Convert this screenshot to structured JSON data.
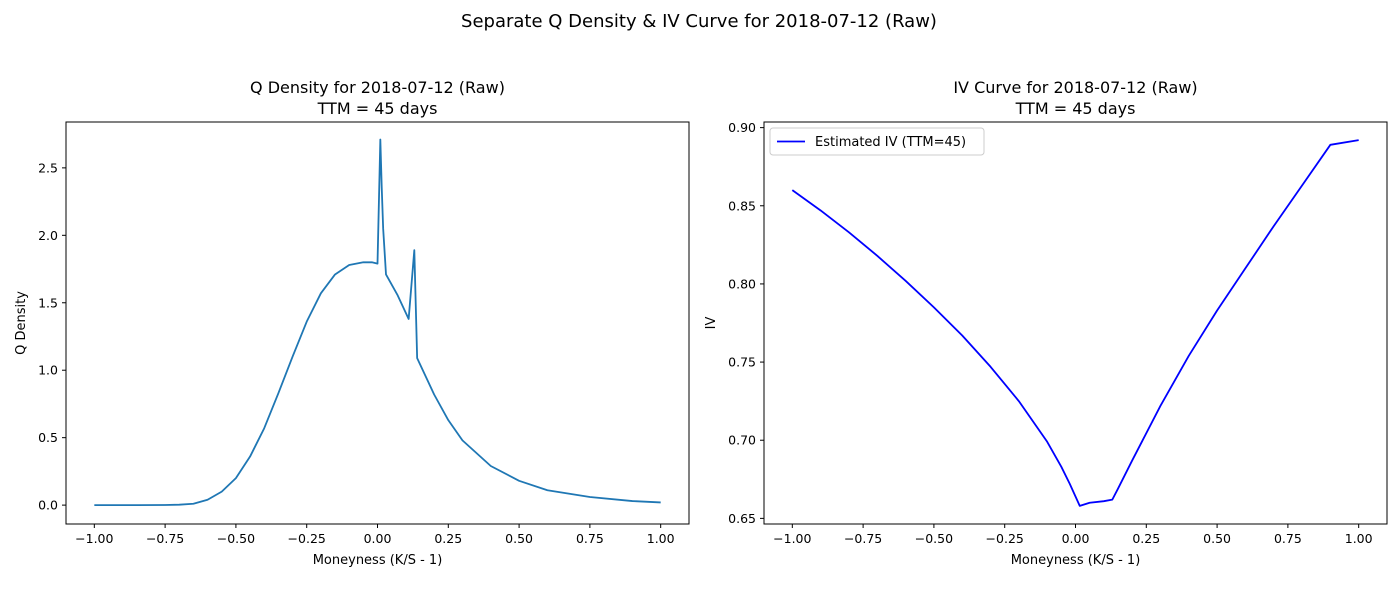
{
  "figure": {
    "suptitle": "Separate Q Density & IV Curve for 2018-07-12 (Raw)"
  },
  "chart_data": [
    {
      "type": "line",
      "title": "Q Density for 2018-07-12 (Raw)",
      "subtitle": "TTM = 45 days",
      "xlabel": "Moneyness (K/S - 1)",
      "ylabel": "Q Density",
      "xlim": [
        -1.1,
        1.1
      ],
      "ylim": [
        -0.14,
        2.84
      ],
      "xticks": [
        -1.0,
        -0.75,
        -0.5,
        -0.25,
        0.0,
        0.25,
        0.5,
        0.75,
        1.0
      ],
      "xtick_labels": [
        "−1.00",
        "−0.75",
        "−0.50",
        "−0.25",
        "0.00",
        "0.25",
        "0.50",
        "0.75",
        "1.00"
      ],
      "yticks": [
        0.0,
        0.5,
        1.0,
        1.5,
        2.0,
        2.5
      ],
      "ytick_labels": [
        "0.0",
        "0.5",
        "1.0",
        "1.5",
        "2.0",
        "2.5"
      ],
      "grid": false,
      "series": [
        {
          "color": "#1f77b4",
          "x": [
            -1.0,
            -0.85,
            -0.75,
            -0.7,
            -0.65,
            -0.6,
            -0.55,
            -0.5,
            -0.45,
            -0.4,
            -0.35,
            -0.3,
            -0.25,
            -0.2,
            -0.15,
            -0.1,
            -0.05,
            -0.02,
            0.0,
            0.01,
            0.015,
            0.02,
            0.03,
            0.07,
            0.11,
            0.13,
            0.14,
            0.2,
            0.25,
            0.3,
            0.4,
            0.5,
            0.6,
            0.75,
            0.9,
            1.0
          ],
          "y": [
            0.0,
            0.0,
            0.001,
            0.003,
            0.01,
            0.04,
            0.1,
            0.2,
            0.36,
            0.57,
            0.83,
            1.1,
            1.36,
            1.57,
            1.71,
            1.78,
            1.8,
            1.8,
            1.79,
            2.71,
            2.35,
            2.05,
            1.71,
            1.56,
            1.38,
            1.89,
            1.09,
            0.82,
            0.63,
            0.48,
            0.29,
            0.18,
            0.11,
            0.06,
            0.03,
            0.02
          ]
        }
      ]
    },
    {
      "type": "line",
      "title": "IV Curve for 2018-07-12 (Raw)",
      "subtitle": "TTM = 45 days",
      "xlabel": "Moneyness (K/S - 1)",
      "ylabel": "IV",
      "xlim": [
        -1.1,
        1.1
      ],
      "ylim": [
        0.6464,
        0.9036
      ],
      "xticks": [
        -1.0,
        -0.75,
        -0.5,
        -0.25,
        0.0,
        0.25,
        0.5,
        0.75,
        1.0
      ],
      "xtick_labels": [
        "−1.00",
        "−0.75",
        "−0.50",
        "−0.25",
        "0.00",
        "0.25",
        "0.50",
        "0.75",
        "1.00"
      ],
      "yticks": [
        0.65,
        0.7,
        0.75,
        0.8,
        0.85,
        0.9
      ],
      "ytick_labels": [
        "0.65",
        "0.70",
        "0.75",
        "0.80",
        "0.85",
        "0.90"
      ],
      "grid": false,
      "legend": "top-left",
      "series": [
        {
          "name": "Estimated IV (TTM=45)",
          "color": "#0000ff",
          "x": [
            -1.0,
            -0.9,
            -0.8,
            -0.7,
            -0.6,
            -0.5,
            -0.4,
            -0.3,
            -0.2,
            -0.1,
            -0.05,
            -0.02,
            0.0,
            0.015,
            0.05,
            0.1,
            0.13,
            0.15,
            0.2,
            0.3,
            0.4,
            0.5,
            0.6,
            0.7,
            0.8,
            0.9,
            1.0
          ],
          "y": [
            0.86,
            0.847,
            0.833,
            0.818,
            0.802,
            0.785,
            0.767,
            0.747,
            0.725,
            0.699,
            0.683,
            0.672,
            0.664,
            0.658,
            0.66,
            0.661,
            0.662,
            0.669,
            0.687,
            0.722,
            0.754,
            0.783,
            0.81,
            0.837,
            0.863,
            0.889,
            0.892
          ]
        }
      ]
    }
  ]
}
